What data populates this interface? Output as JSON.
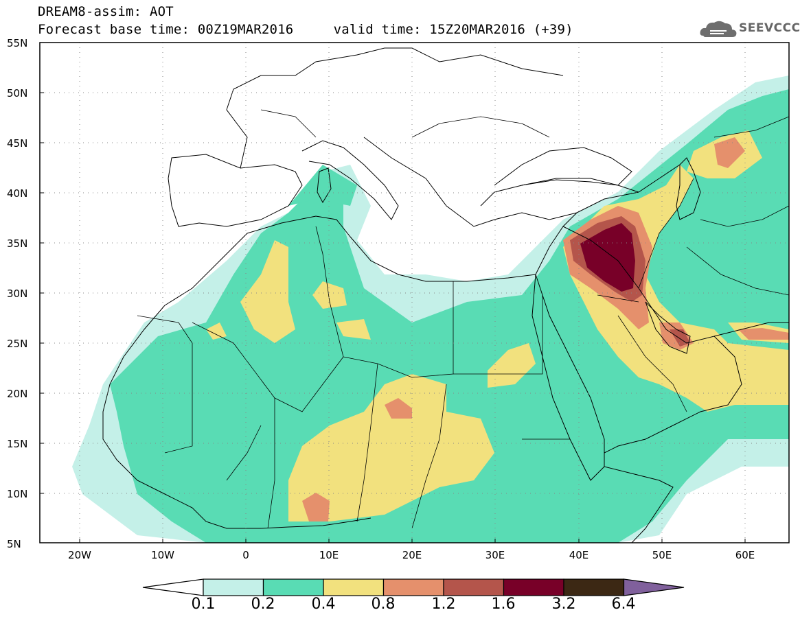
{
  "header": {
    "title_line1": "DREAM8-assim: AOT",
    "title_line2": "Forecast base time: 00Z19MAR2016     valid time: 15Z20MAR2016 (+39)",
    "logo_text": "SEEVCCC"
  },
  "map": {
    "lat_labels": [
      "55N",
      "50N",
      "45N",
      "40N",
      "35N",
      "30N",
      "25N",
      "20N",
      "15N",
      "10N",
      "5N"
    ],
    "lon_labels": [
      "20W",
      "10W",
      "0",
      "10E",
      "20E",
      "30E",
      "40E",
      "50E",
      "60E"
    ],
    "extent": {
      "lon_min": -25,
      "lon_max": 65,
      "lat_min": 5,
      "lat_max": 55
    },
    "grid": "dotted"
  },
  "legend": {
    "levels": [
      "0.1",
      "0.2",
      "0.4",
      "0.8",
      "1.2",
      "1.6",
      "3.2",
      "6.4"
    ],
    "colors": [
      "#ffffff",
      "#c4f0e8",
      "#59dcb4",
      "#f2e17e",
      "#e5906c",
      "#b4554b",
      "#780028",
      "#3c2814",
      "#80609c"
    ]
  }
}
